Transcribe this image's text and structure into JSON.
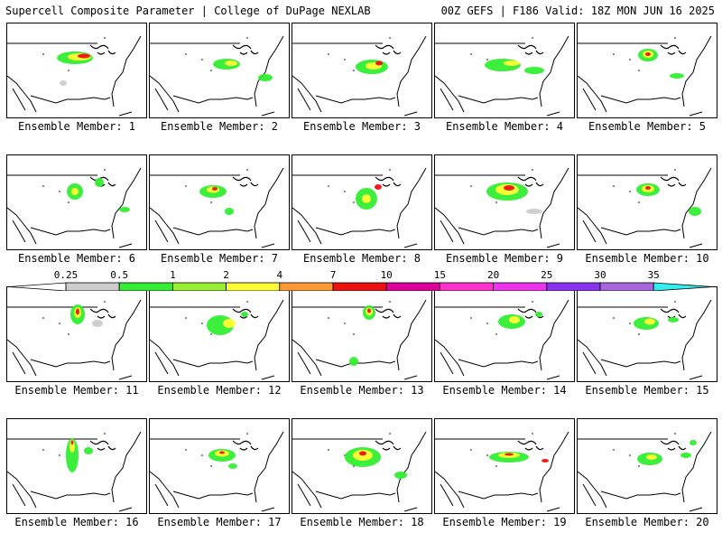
{
  "header": {
    "title": "Supercell Composite Parameter | College of DuPage NEXLAB",
    "run_info": "00Z GEFS | F186 Valid: 18Z MON JUN 16 2025"
  },
  "legend": {
    "labels": [
      "0.25",
      "0.5",
      "1",
      "2",
      "4",
      "7",
      "10",
      "15",
      "20",
      "25",
      "30",
      "35"
    ],
    "colors": [
      "#cccccc",
      "#33ee33",
      "#99ee33",
      "#ffff33",
      "#ff9933",
      "#ee1111",
      "#dd0099",
      "#ff33cc",
      "#ee33ee",
      "#8833ee",
      "#aa66dd",
      "#33eeee"
    ]
  },
  "map_colors": {
    "land_outline": "#000000",
    "low": "#cccccc",
    "mid": "#33ee33",
    "high": "#ffff33",
    "max": "#ee1111"
  },
  "panels": [
    {
      "label": "Ensemble Member: 1"
    },
    {
      "label": "Ensemble Member: 2"
    },
    {
      "label": "Ensemble Member: 3"
    },
    {
      "label": "Ensemble Member: 4"
    },
    {
      "label": "Ensemble Member: 5"
    },
    {
      "label": "Ensemble Member: 6"
    },
    {
      "label": "Ensemble Member: 7"
    },
    {
      "label": "Ensemble Member: 8"
    },
    {
      "label": "Ensemble Member: 9"
    },
    {
      "label": "Ensemble Member: 10"
    },
    {
      "label": "Ensemble Member: 11"
    },
    {
      "label": "Ensemble Member: 12"
    },
    {
      "label": "Ensemble Member: 13"
    },
    {
      "label": "Ensemble Member: 14"
    },
    {
      "label": "Ensemble Member: 15"
    },
    {
      "label": "Ensemble Member: 16"
    },
    {
      "label": "Ensemble Member: 17"
    },
    {
      "label": "Ensemble Member: 18"
    },
    {
      "label": "Ensemble Member: 19"
    },
    {
      "label": "Ensemble Member: 20"
    }
  ]
}
